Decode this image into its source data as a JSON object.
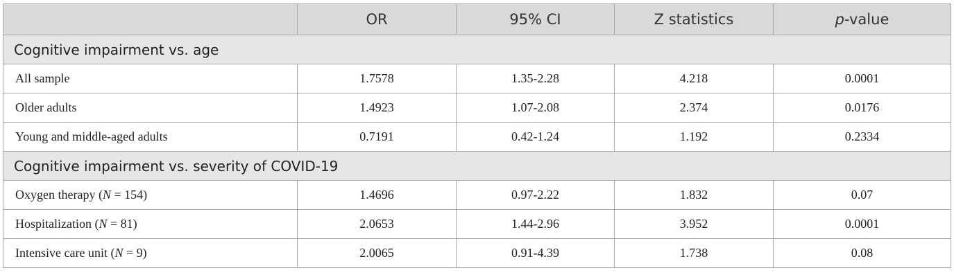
{
  "header": {
    "blank": "",
    "or": "OR",
    "ci": "95% CI",
    "z": "Z statistics",
    "p_italic": "p",
    "p_rest": "-value"
  },
  "sections": [
    {
      "title": "Cognitive impairment vs. age",
      "rows": [
        {
          "label": "All sample",
          "or": "1.7578",
          "ci": "1.35-2.28",
          "z": "4.218",
          "p": "0.0001"
        },
        {
          "label": "Older adults",
          "or": "1.4923",
          "ci": "1.07-2.08",
          "z": "2.374",
          "p": "0.0176"
        },
        {
          "label": "Young and middle-aged adults",
          "or": "0.7191",
          "ci": "0.42-1.24",
          "z": "1.192",
          "p": "0.2334"
        }
      ]
    },
    {
      "title": "Cognitive impairment vs. severity of COVID-19",
      "rows": [
        {
          "label_pre": "Oxygen therapy (",
          "label_n": "N",
          "label_post": " = 154)",
          "or": "1.4696",
          "ci": "0.97-2.22",
          "z": "1.832",
          "p": "0.07"
        },
        {
          "label_pre": "Hospitalization (",
          "label_n": "N",
          "label_post": " = 81)",
          "or": "2.0653",
          "ci": "1.44-2.96",
          "z": "3.952",
          "p": "0.0001"
        },
        {
          "label_pre": "Intensive care unit (",
          "label_n": "N",
          "label_post": " = 9)",
          "or": "2.0065",
          "ci": "0.91-4.39",
          "z": "1.738",
          "p": "0.08"
        }
      ]
    }
  ]
}
